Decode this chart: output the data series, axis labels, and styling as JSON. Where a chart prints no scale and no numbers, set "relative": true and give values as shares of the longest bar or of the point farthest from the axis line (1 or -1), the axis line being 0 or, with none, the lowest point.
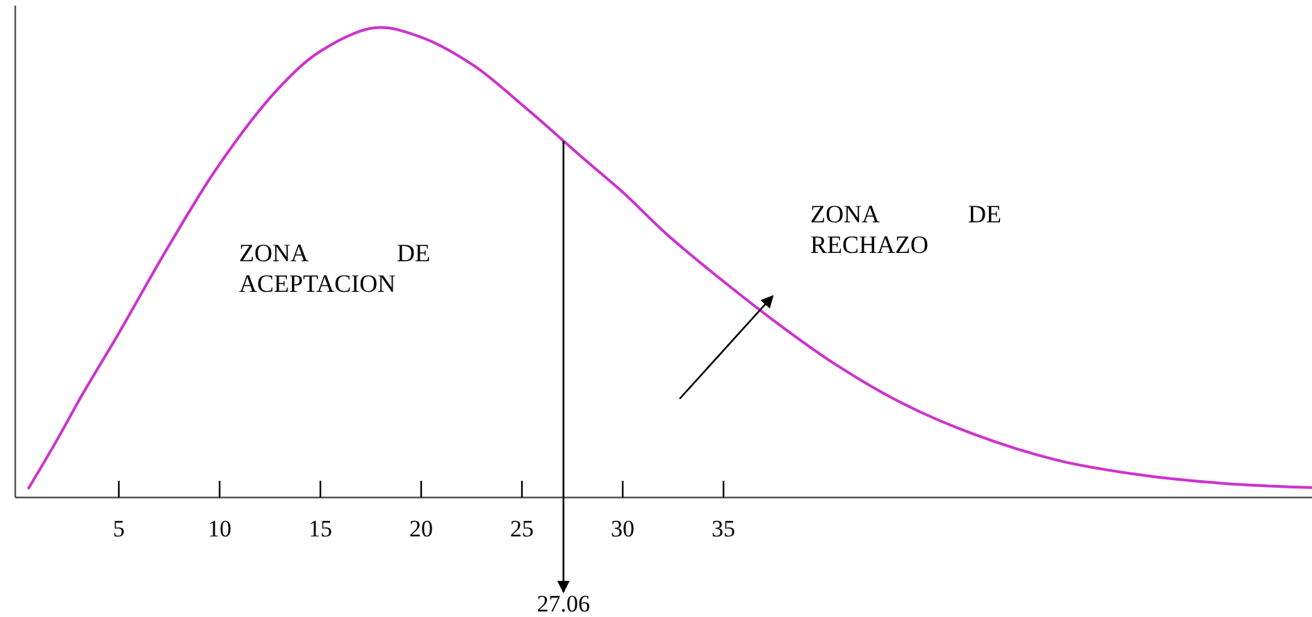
{
  "chart_data": {
    "type": "line",
    "relative": true,
    "x": [
      0.5,
      1.9,
      3.2,
      5,
      7.4,
      10,
      12.9,
      15,
      17.7,
      20,
      22.6,
      24.9,
      28.1,
      30,
      32.2,
      35,
      37.7,
      40.5,
      43.9,
      47.4,
      51.5,
      55.7,
      59.8,
      64.2
    ],
    "series": [
      {
        "color": "#cc33cc",
        "values": [
          0.018,
          0.12,
          0.22,
          0.35,
          0.53,
          0.71,
          0.87,
          0.95,
          1,
          0.98,
          0.92,
          0.84,
          0.72,
          0.65,
          0.56,
          0.46,
          0.37,
          0.285,
          0.2,
          0.135,
          0.08,
          0.048,
          0.03,
          0.021
        ]
      }
    ],
    "xlim": [
      0,
      64.2
    ],
    "xticks": [
      5,
      10,
      15,
      20,
      25,
      30,
      35
    ],
    "ref_lines": [
      {
        "axis": "x",
        "value": 27.06,
        "label": "27.06",
        "color": "#000000"
      }
    ],
    "annotations": [
      "ZONA DE ACEPTACION",
      "ZONA DE RECHAZO"
    ]
  }
}
